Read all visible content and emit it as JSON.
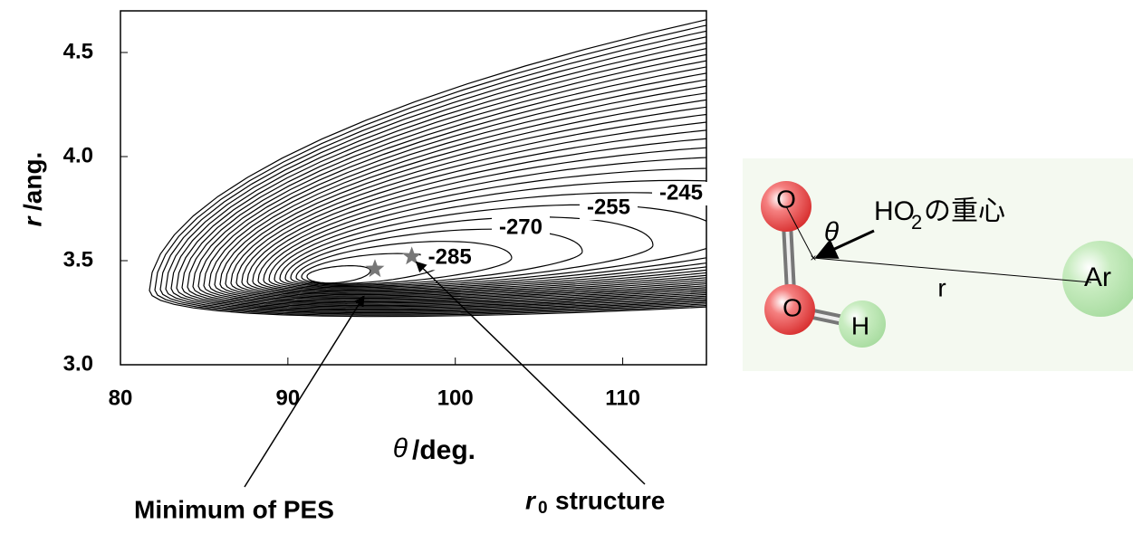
{
  "chart_data": {
    "type": "contour",
    "xlabel": {
      "symbol": "θ",
      "unit": "/deg."
    },
    "ylabel": {
      "symbol": "r",
      "unit": "/ang."
    },
    "xlim": [
      80,
      115
    ],
    "ylim": [
      3.0,
      4.7
    ],
    "xticks": [
      80,
      90,
      100,
      110
    ],
    "yticks": [
      {
        "value": 3.0,
        "label": "3.0"
      },
      3.5,
      {
        "value": 4.0,
        "label": "4.0"
      },
      4.5
    ],
    "contour_levels": [
      -285,
      -270,
      -255,
      -245
    ],
    "stars": {
      "x": [
        95.2,
        97.4
      ],
      "y": [
        3.46,
        3.52
      ],
      "color": "#777777"
    },
    "annotations": [
      {
        "text": "Minimum of PES"
      },
      {
        "symbol": "r",
        "subscript": "0",
        "text": "structure"
      }
    ]
  },
  "diagram": {
    "atoms": [
      "O",
      "O",
      "H",
      "Ar"
    ],
    "angle": "θ",
    "distance": "r",
    "center_label": {
      "text": "HO",
      "subscript": "2",
      "suffix": "の重心"
    }
  }
}
